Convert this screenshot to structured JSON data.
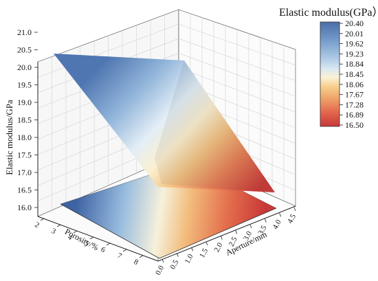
{
  "chart_data": {
    "type": "surface",
    "title": "",
    "xlabel": "Porosity/%",
    "ylabel": "Aperture/mm",
    "zlabel": "Elastic modulus/GPa",
    "x_ticks": [
      "2",
      "3",
      "4",
      "5",
      "6",
      "7",
      "8"
    ],
    "y_ticks": [
      "0.0",
      "0.5",
      "1.0",
      "1.5",
      "2.0",
      "2.5",
      "3.0",
      "3.5",
      "4.0",
      "4.5"
    ],
    "z_ticks": [
      "16.0",
      "16.5",
      "17.0",
      "17.5",
      "18.0",
      "18.5",
      "19.0",
      "19.5",
      "20.0",
      "20.5",
      "21.0"
    ],
    "xlim": [
      2,
      8
    ],
    "ylim": [
      0,
      4.5
    ],
    "zlim": [
      16,
      21
    ],
    "grid": true,
    "surface": {
      "x": [
        2,
        8
      ],
      "y": [
        0,
        4.5
      ],
      "z": [
        [
          20.4,
          19.0
        ],
        [
          20.3,
          16.5
        ]
      ]
    },
    "colorbar": {
      "title": "Elastic modulus(GPa）",
      "ticks": [
        "20.40",
        "20.01",
        "19.62",
        "19.23",
        "18.84",
        "18.45",
        "18.06",
        "17.67",
        "17.28",
        "16.89",
        "16.50"
      ],
      "range": [
        16.5,
        20.4
      ],
      "colors": [
        "#4a6ea8",
        "#6f95c6",
        "#a3c3e0",
        "#d9e8f3",
        "#fbf2d6",
        "#f7cf8c",
        "#eea068",
        "#e2644c",
        "#c8383a"
      ]
    }
  }
}
